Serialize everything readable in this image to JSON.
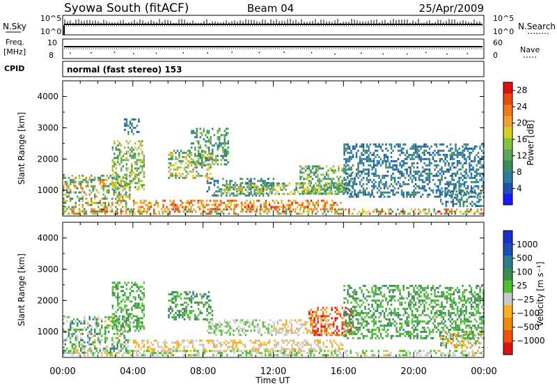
{
  "header": {
    "station": "Syowa South (fitACF)",
    "beam": "Beam 04",
    "date": "25/Apr/2009"
  },
  "labels": {
    "nsky": "N.Sky",
    "nsearch": "N.Search",
    "freq": "Freq.",
    "mhz": "[MHz]",
    "nave": "Nave",
    "cpid": "CPID",
    "cpid_value": "normal (fast stereo) 153",
    "pow10_top": "10^5",
    "pow10_bottom": "10^0",
    "freq_ticks": [
      "10",
      "8"
    ],
    "nave_ticks": [
      "60",
      "0"
    ]
  },
  "chart_data": [
    {
      "type": "heatmap",
      "name": "power",
      "xlabel": "",
      "ylabel": "Slant Range [km]",
      "xlim": [
        0,
        24
      ],
      "ylim": [
        180,
        4500
      ],
      "yticks": [
        "1000",
        "2000",
        "3000",
        "4000"
      ],
      "colorbar": {
        "label": "Power [dB]",
        "ticks": [
          "4",
          "8",
          "12",
          "16",
          "20",
          "24",
          "28"
        ],
        "range": [
          0,
          30
        ],
        "colors": [
          "#1a1aff",
          "#1e50b4",
          "#2e7da0",
          "#3c8c60",
          "#58a858",
          "#88c040",
          "#d8d020",
          "#f0a030",
          "#f07818",
          "#e84a10",
          "#e01010"
        ]
      },
      "regions": [
        {
          "t": [
            0.0,
            3.8
          ],
          "r": [
            300,
            1500
          ],
          "v": [
            6,
            24
          ]
        },
        {
          "t": [
            2.8,
            4.6
          ],
          "r": [
            1000,
            2600
          ],
          "v": [
            8,
            20
          ]
        },
        {
          "t": [
            3.5,
            4.3
          ],
          "r": [
            2800,
            3300
          ],
          "v": [
            4,
            12
          ]
        },
        {
          "t": [
            6.0,
            8.5
          ],
          "r": [
            1400,
            2300
          ],
          "v": [
            8,
            22
          ]
        },
        {
          "t": [
            7.3,
            9.4
          ],
          "r": [
            1800,
            3000
          ],
          "v": [
            6,
            16
          ]
        },
        {
          "t": [
            8.2,
            12.0
          ],
          "r": [
            850,
            1400
          ],
          "v": [
            4,
            12
          ]
        },
        {
          "t": [
            9.0,
            16.5
          ],
          "r": [
            850,
            1250
          ],
          "v": [
            8,
            20
          ]
        },
        {
          "t": [
            13.5,
            16.5
          ],
          "r": [
            900,
            1800
          ],
          "v": [
            6,
            18
          ]
        },
        {
          "t": [
            4.0,
            16.0
          ],
          "r": [
            400,
            700
          ],
          "v": [
            16,
            28
          ]
        },
        {
          "t": [
            0.0,
            24.0
          ],
          "r": [
            220,
            420
          ],
          "v": [
            10,
            28
          ]
        },
        {
          "t": [
            16.0,
            24.0
          ],
          "r": [
            800,
            2500
          ],
          "v": [
            4,
            10
          ]
        },
        {
          "t": [
            21.5,
            23.8
          ],
          "r": [
            500,
            1000
          ],
          "v": [
            4,
            12
          ]
        }
      ]
    },
    {
      "type": "heatmap",
      "name": "velocity",
      "xlabel": "Time UT",
      "ylabel": "Slant Range [km]",
      "xlim": [
        0,
        24
      ],
      "ylim": [
        180,
        4500
      ],
      "xticks": [
        "00:00",
        "04:00",
        "08:00",
        "12:00",
        "16:00",
        "20:00",
        "00:00"
      ],
      "yticks": [
        "1000",
        "2000",
        "3000",
        "4000"
      ],
      "colorbar": {
        "label": "Velocity [m s⁻¹]",
        "ticks": [
          "1000",
          "500",
          "100",
          "25",
          "−25",
          "−100",
          "−500",
          "−1000"
        ],
        "range": [
          -1200,
          1200
        ],
        "colors": [
          "#e01010",
          "#f05010",
          "#f08a10",
          "#f8b020",
          "#c8c8c8",
          "#50c030",
          "#3c8c50",
          "#2e7a90",
          "#1e50b4",
          "#1a30c8"
        ]
      },
      "regions": [
        {
          "t": [
            0.0,
            3.8
          ],
          "r": [
            300,
            1500
          ],
          "v": [
            -300,
            600
          ]
        },
        {
          "t": [
            2.8,
            4.6
          ],
          "r": [
            1000,
            2600
          ],
          "v": [
            0,
            400
          ]
        },
        {
          "t": [
            6.0,
            8.5
          ],
          "r": [
            1400,
            2300
          ],
          "v": [
            0,
            600
          ]
        },
        {
          "t": [
            8.2,
            12.0
          ],
          "r": [
            900,
            1400
          ],
          "v": [
            -30,
            30
          ]
        },
        {
          "t": [
            12.0,
            15.0
          ],
          "r": [
            900,
            1400
          ],
          "v": [
            -400,
            -50
          ]
        },
        {
          "t": [
            14.0,
            16.5
          ],
          "r": [
            900,
            1800
          ],
          "v": [
            -1200,
            -400
          ]
        },
        {
          "t": [
            4.0,
            16.0
          ],
          "r": [
            400,
            750
          ],
          "v": [
            -400,
            -100
          ]
        },
        {
          "t": [
            0.0,
            24.0
          ],
          "r": [
            220,
            420
          ],
          "v": [
            -300,
            200
          ]
        },
        {
          "t": [
            16.0,
            24.0
          ],
          "r": [
            800,
            2500
          ],
          "v": [
            0,
            500
          ]
        },
        {
          "t": [
            21.5,
            23.8
          ],
          "r": [
            500,
            1000
          ],
          "v": [
            -600,
            400
          ]
        }
      ]
    }
  ]
}
